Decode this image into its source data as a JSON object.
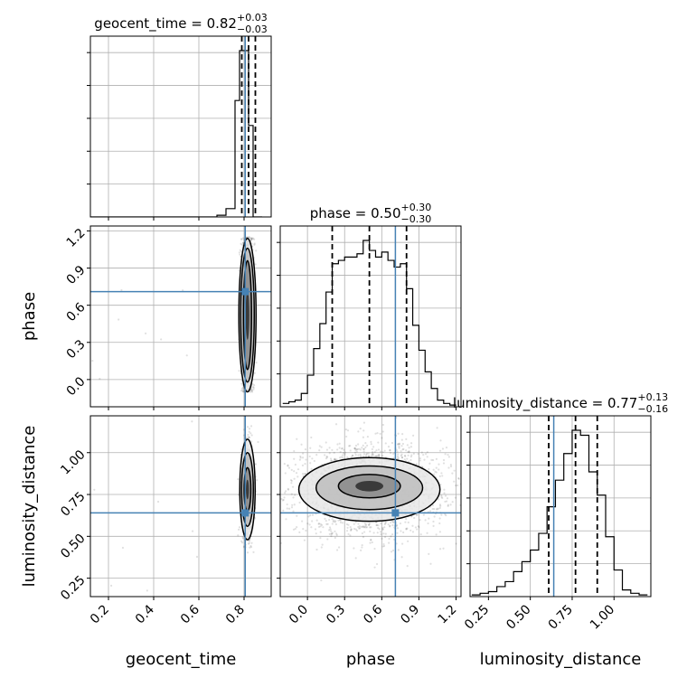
{
  "chart_data": {
    "type": "corner",
    "truth_color": "#4682b4",
    "quantile_color": "#000000",
    "parameters": [
      {
        "name": "geocent_time",
        "axis_label": "geocent_time",
        "title_prefix": "geocent_time = ",
        "median": "0.82",
        "plus": "+0.03",
        "minus": "−0.03",
        "range": [
          0.12,
          0.92
        ],
        "ticks": [
          0.2,
          0.4,
          0.6,
          0.8
        ],
        "tick_labels": [
          "0.2",
          "0.4",
          "0.6",
          "0.8"
        ],
        "quantiles": [
          0.79,
          0.82,
          0.85
        ],
        "truth": 0.805
      },
      {
        "name": "phase",
        "axis_label": "phase",
        "title_prefix": "phase = ",
        "median": "0.50",
        "plus": "+0.30",
        "minus": "−0.30",
        "range": [
          -0.22,
          1.24
        ],
        "ticks": [
          0.0,
          0.3,
          0.6,
          0.9,
          1.2
        ],
        "tick_labels": [
          "0.0",
          "0.3",
          "0.6",
          "0.9",
          "1.2"
        ],
        "quantiles": [
          0.2,
          0.5,
          0.8
        ],
        "truth": 0.71
      },
      {
        "name": "luminosity_distance",
        "axis_label": "luminosity_distance",
        "title_prefix": "luminosity_distance = ",
        "median": "0.77",
        "plus": "+0.13",
        "minus": "−0.16",
        "range": [
          0.14,
          1.22
        ],
        "ticks": [
          0.25,
          0.5,
          0.75,
          1.0
        ],
        "tick_labels": [
          "0.25",
          "0.50",
          "0.75",
          "1.00"
        ],
        "quantiles": [
          0.61,
          0.77,
          0.9
        ],
        "truth": 0.64
      }
    ],
    "histograms": [
      {
        "param": "geocent_time",
        "bins": [
          0.12,
          0.16,
          0.2,
          0.24,
          0.28,
          0.32,
          0.36,
          0.4,
          0.44,
          0.48,
          0.52,
          0.56,
          0.6,
          0.64,
          0.68,
          0.72,
          0.76,
          0.78,
          0.8,
          0.82,
          0.84,
          0.86,
          0.88
        ],
        "counts": [
          0,
          0,
          0,
          0,
          0,
          0,
          0,
          0,
          0,
          0,
          0,
          0,
          0,
          0,
          1,
          5,
          70,
          100,
          100,
          55,
          0,
          0
        ]
      },
      {
        "param": "phase",
        "bins": [
          -0.2,
          -0.15,
          -0.1,
          -0.05,
          0.0,
          0.05,
          0.1,
          0.15,
          0.2,
          0.25,
          0.3,
          0.35,
          0.4,
          0.45,
          0.5,
          0.55,
          0.6,
          0.65,
          0.7,
          0.75,
          0.8,
          0.85,
          0.9,
          0.95,
          1.0,
          1.05,
          1.1,
          1.15,
          1.2
        ],
        "counts": [
          2,
          3,
          4,
          8,
          19,
          35,
          50,
          69,
          86,
          88,
          90,
          90,
          92,
          100,
          94,
          90,
          93,
          88,
          84,
          86,
          71,
          49,
          34,
          21,
          11,
          4,
          2,
          1
        ]
      },
      {
        "param": "luminosity_distance",
        "bins": [
          0.15,
          0.2,
          0.25,
          0.3,
          0.35,
          0.4,
          0.45,
          0.5,
          0.55,
          0.6,
          0.65,
          0.7,
          0.75,
          0.8,
          0.85,
          0.9,
          0.95,
          1.0,
          1.05,
          1.1,
          1.15,
          1.2
        ],
        "counts": [
          1,
          2,
          3,
          6,
          9,
          15,
          21,
          28,
          38,
          54,
          70,
          86,
          100,
          97,
          75,
          61,
          36,
          16,
          4,
          2,
          1
        ]
      }
    ],
    "scatter_2d": [
      {
        "x": "geocent_time",
        "y": "phase",
        "x_center": 0.815,
        "x_sd": 0.013,
        "y_min": -0.1,
        "y_max": 1.15,
        "y_sd": 0.0,
        "truth": [
          0.805,
          0.71
        ],
        "n_points": 1400,
        "contours": [
          {
            "level": 1,
            "a": 0.018,
            "b": 0.44,
            "cx": 0.815,
            "cy": 0.52
          },
          {
            "level": 2,
            "a": 0.03,
            "b": 0.54,
            "cx": 0.815,
            "cy": 0.52
          },
          {
            "level": 3,
            "a": 0.038,
            "b": 0.62,
            "cx": 0.815,
            "cy": 0.52
          }
        ]
      },
      {
        "x": "geocent_time",
        "y": "luminosity_distance",
        "x_center": 0.815,
        "x_sd": 0.013,
        "y_center": 0.78,
        "y_sd": 0.13,
        "truth": [
          0.805,
          0.64
        ],
        "n_points": 1400,
        "contours": [
          {
            "level": 1,
            "a": 0.015,
            "b": 0.13,
            "cx": 0.815,
            "cy": 0.78
          },
          {
            "level": 2,
            "a": 0.026,
            "b": 0.22,
            "cx": 0.815,
            "cy": 0.78
          },
          {
            "level": 3,
            "a": 0.034,
            "b": 0.3,
            "cx": 0.815,
            "cy": 0.78
          }
        ]
      },
      {
        "x": "phase",
        "y": "luminosity_distance",
        "x_center": 0.5,
        "x_sd": 0.3,
        "y_center": 0.78,
        "y_sd": 0.13,
        "truth": [
          0.71,
          0.64
        ],
        "n_points": 2200,
        "contours": [
          {
            "level": 1,
            "a": 0.25,
            "b": 0.07,
            "cx": 0.5,
            "cy": 0.8
          },
          {
            "level": 2,
            "a": 0.43,
            "b": 0.13,
            "cx": 0.5,
            "cy": 0.79
          },
          {
            "level": 3,
            "a": 0.57,
            "b": 0.19,
            "cx": 0.5,
            "cy": 0.78
          }
        ]
      }
    ]
  }
}
